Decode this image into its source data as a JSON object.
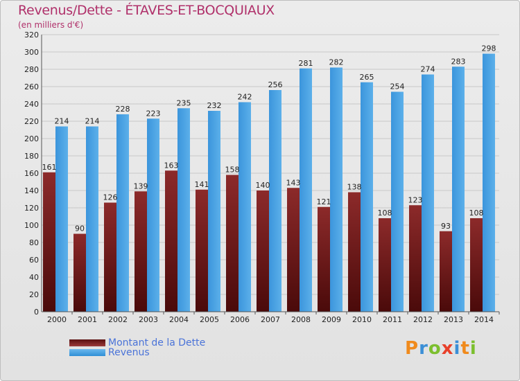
{
  "title": "Revenus/Dette - ÉTAVES-ET-BOCQUIAUX",
  "subtitle": "(en milliers d'€)",
  "logo_text": "Proxiti",
  "colors": {
    "title": "#b0306a",
    "dette": "#7a1c1c",
    "revenus": "#4ea6e6",
    "legend_text": "#4a73d8",
    "grid": "#c8c8c8"
  },
  "chart_data": {
    "type": "bar",
    "title": "Revenus/Dette - ÉTAVES-ET-BOCQUIAUX",
    "subtitle": "(en milliers d'€)",
    "categories": [
      "2000",
      "2001",
      "2002",
      "2003",
      "2004",
      "2005",
      "2006",
      "2007",
      "2008",
      "2009",
      "2010",
      "2011",
      "2012",
      "2013",
      "2014"
    ],
    "series": [
      {
        "name": "Montant de la Dette",
        "color": "#7a1c1c",
        "values": [
          161,
          90,
          126,
          139,
          163,
          141,
          158,
          140,
          143,
          121,
          138,
          108,
          123,
          93,
          108
        ]
      },
      {
        "name": "Revenus",
        "color": "#4ea6e6",
        "values": [
          214,
          214,
          228,
          223,
          235,
          232,
          242,
          256,
          281,
          282,
          265,
          254,
          274,
          283,
          298
        ]
      }
    ],
    "yticks": [
      0,
      20,
      40,
      60,
      80,
      100,
      120,
      140,
      160,
      180,
      200,
      220,
      240,
      260,
      280,
      300,
      320
    ],
    "ylim": [
      0,
      320
    ],
    "grid": true,
    "legend_position": "bottom-left"
  }
}
